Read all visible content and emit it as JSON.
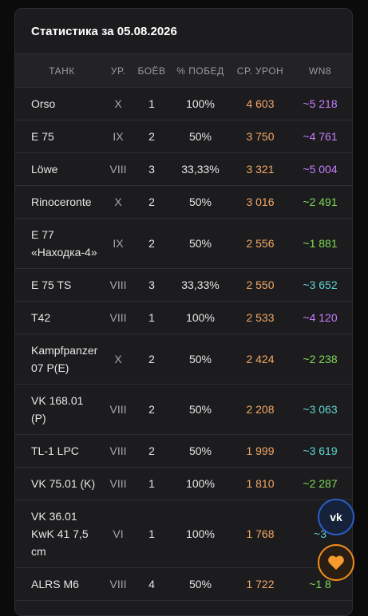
{
  "header": {
    "title": "Статистика за 05.08.2026"
  },
  "table": {
    "headers": [
      "ТАНК",
      "УР.",
      "БОЁВ",
      "% ПОБЕД",
      "СР. УРОН",
      "WN8"
    ],
    "damage_color": "#f2a766",
    "rows": [
      {
        "cells": [
          "Orso",
          "X",
          "1",
          "100%",
          "4 603",
          "~5 218"
        ],
        "wn8_color": "#c77dff"
      },
      {
        "cells": [
          "E 75",
          "IX",
          "2",
          "50%",
          "3 750",
          "~4 761"
        ],
        "wn8_color": "#c77dff"
      },
      {
        "cells": [
          "Löwe",
          "VIII",
          "3",
          "33,33%",
          "3 321",
          "~5 004"
        ],
        "wn8_color": "#c77dff"
      },
      {
        "cells": [
          "Rinoceronte",
          "X",
          "2",
          "50%",
          "3 016",
          "~2 491"
        ],
        "wn8_color": "#7ed957"
      },
      {
        "cells": [
          "E 77 «Находка-4»",
          "IX",
          "2",
          "50%",
          "2 556",
          "~1 881"
        ],
        "wn8_color": "#7ed957"
      },
      {
        "cells": [
          "E 75 TS",
          "VIII",
          "3",
          "33,33%",
          "2 550",
          "~3 652"
        ],
        "wn8_color": "#5fd4d4"
      },
      {
        "cells": [
          "T42",
          "VIII",
          "1",
          "100%",
          "2 533",
          "~4 120"
        ],
        "wn8_color": "#c77dff"
      },
      {
        "cells": [
          "Kampfpanzer 07 P(E)",
          "X",
          "2",
          "50%",
          "2 424",
          "~2 238"
        ],
        "wn8_color": "#7ed957"
      },
      {
        "cells": [
          "VK 168.01 (P)",
          "VIII",
          "2",
          "50%",
          "2 208",
          "~3 063"
        ],
        "wn8_color": "#5fd4d4"
      },
      {
        "cells": [
          "TL-1 LPC",
          "VIII",
          "2",
          "50%",
          "1 999",
          "~3 619"
        ],
        "wn8_color": "#5fd4d4"
      },
      {
        "cells": [
          "VK 75.01 (K)",
          "VIII",
          "1",
          "100%",
          "1 810",
          "~2 287"
        ],
        "wn8_color": "#7ed957"
      },
      {
        "cells": [
          "VK 36.01 KwK 41 7,5 cm",
          "VI",
          "1",
          "100%",
          "1 768",
          "~3"
        ],
        "wn8_color": "#5fd4d4"
      },
      {
        "cells": [
          "ALRS M6",
          "VIII",
          "4",
          "50%",
          "1 722",
          "~1 8"
        ],
        "wn8_color": "#7ed957"
      }
    ]
  }
}
